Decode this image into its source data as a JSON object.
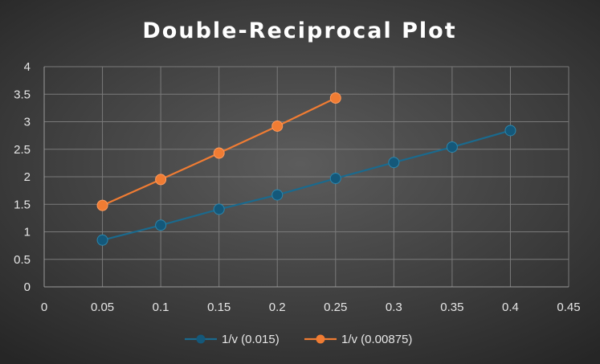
{
  "chart_data": {
    "type": "line",
    "title": "Double-Reciprocal Plot",
    "xlabel": "",
    "ylabel": "",
    "xlim": [
      0,
      0.45
    ],
    "ylim": [
      0,
      4
    ],
    "x_ticks": [
      "0",
      "0.05",
      "0.1",
      "0.15",
      "0.2",
      "0.25",
      "0.3",
      "0.35",
      "0.4",
      "0.45"
    ],
    "y_ticks": [
      "0",
      "0.5",
      "1",
      "1.5",
      "2",
      "2.5",
      "3",
      "3.5",
      "4"
    ],
    "grid": true,
    "legend_position": "bottom",
    "series": [
      {
        "name": "1/v (0.015)",
        "color": "#1a6a8e",
        "marker_color": "#14587a",
        "x": [
          0.05,
          0.1,
          0.15,
          0.2,
          0.25,
          0.3,
          0.35,
          0.4
        ],
        "y": [
          0.85,
          1.12,
          1.41,
          1.67,
          1.97,
          2.26,
          2.54,
          2.84
        ]
      },
      {
        "name": "1/v (0.00875)",
        "color": "#f07c33",
        "marker_color": "#f07c33",
        "x": [
          0.05,
          0.1,
          0.15,
          0.2,
          0.25
        ],
        "y": [
          1.48,
          1.95,
          2.43,
          2.92,
          3.43
        ]
      }
    ]
  }
}
